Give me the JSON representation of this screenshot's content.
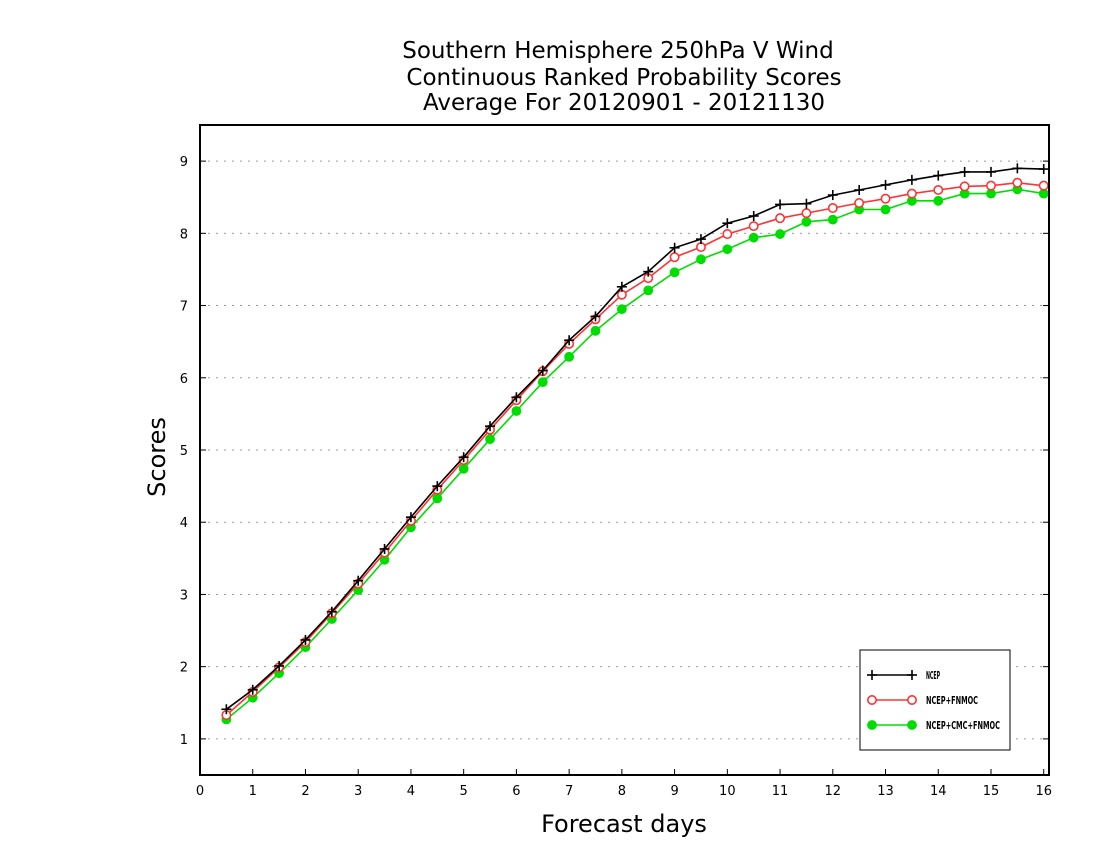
{
  "chart_data": {
    "type": "line",
    "title": [
      "Southern Hemisphere 250hPa V Wind",
      "Continuous Ranked Probability Scores",
      "Average For 20120901 - 20121130"
    ],
    "xlabel": "Forecast days",
    "ylabel": "Scores",
    "xlim": [
      0,
      16.1
    ],
    "ylim": [
      0.5,
      9.5
    ],
    "xticks": [
      0,
      1,
      2,
      3,
      4,
      5,
      6,
      7,
      8,
      9,
      10,
      11,
      12,
      13,
      14,
      15,
      16
    ],
    "yticks": [
      1,
      2,
      3,
      4,
      5,
      6,
      7,
      8,
      9
    ],
    "grid": "horizontal dotted",
    "legend_position": "bottom-right",
    "x": [
      0.5,
      1,
      1.5,
      2,
      2.5,
      3,
      3.5,
      4,
      4.5,
      5,
      5.5,
      6,
      6.5,
      7,
      7.5,
      8,
      8.5,
      9,
      9.5,
      10,
      10.5,
      11,
      11.5,
      12,
      12.5,
      13,
      13.5,
      14,
      14.5,
      15,
      15.5,
      16
    ],
    "series": [
      {
        "name": "NCEP",
        "color": "#000000",
        "marker": "plus",
        "values": [
          1.41,
          1.68,
          2.01,
          2.37,
          2.76,
          3.19,
          3.63,
          4.07,
          4.5,
          4.9,
          5.33,
          5.73,
          6.1,
          6.52,
          6.85,
          7.26,
          7.47,
          7.8,
          7.92,
          8.14,
          8.24,
          8.4,
          8.41,
          8.53,
          8.6,
          8.67,
          8.74,
          8.8,
          8.85,
          8.85,
          8.9,
          8.89
        ]
      },
      {
        "name": "NCEP+FNMOC",
        "color": "#ff3333",
        "marker": "open-circle",
        "values": [
          1.33,
          1.65,
          1.99,
          2.34,
          2.74,
          3.15,
          3.58,
          4.02,
          4.45,
          4.86,
          5.28,
          5.69,
          6.09,
          6.47,
          6.81,
          7.15,
          7.38,
          7.67,
          7.81,
          7.99,
          8.1,
          8.21,
          8.28,
          8.35,
          8.42,
          8.48,
          8.55,
          8.6,
          8.65,
          8.66,
          8.7,
          8.66
        ]
      },
      {
        "name": "NCEP+CMC+FNMOC",
        "color": "#00dd00",
        "marker": "filled-circle",
        "values": [
          1.27,
          1.57,
          1.91,
          2.27,
          2.66,
          3.06,
          3.48,
          3.93,
          4.33,
          4.74,
          5.15,
          5.54,
          5.94,
          6.29,
          6.65,
          6.95,
          7.21,
          7.46,
          7.64,
          7.78,
          7.94,
          7.99,
          8.16,
          8.19,
          8.33,
          8.33,
          8.45,
          8.45,
          8.55,
          8.55,
          8.61,
          8.55
        ]
      }
    ]
  }
}
